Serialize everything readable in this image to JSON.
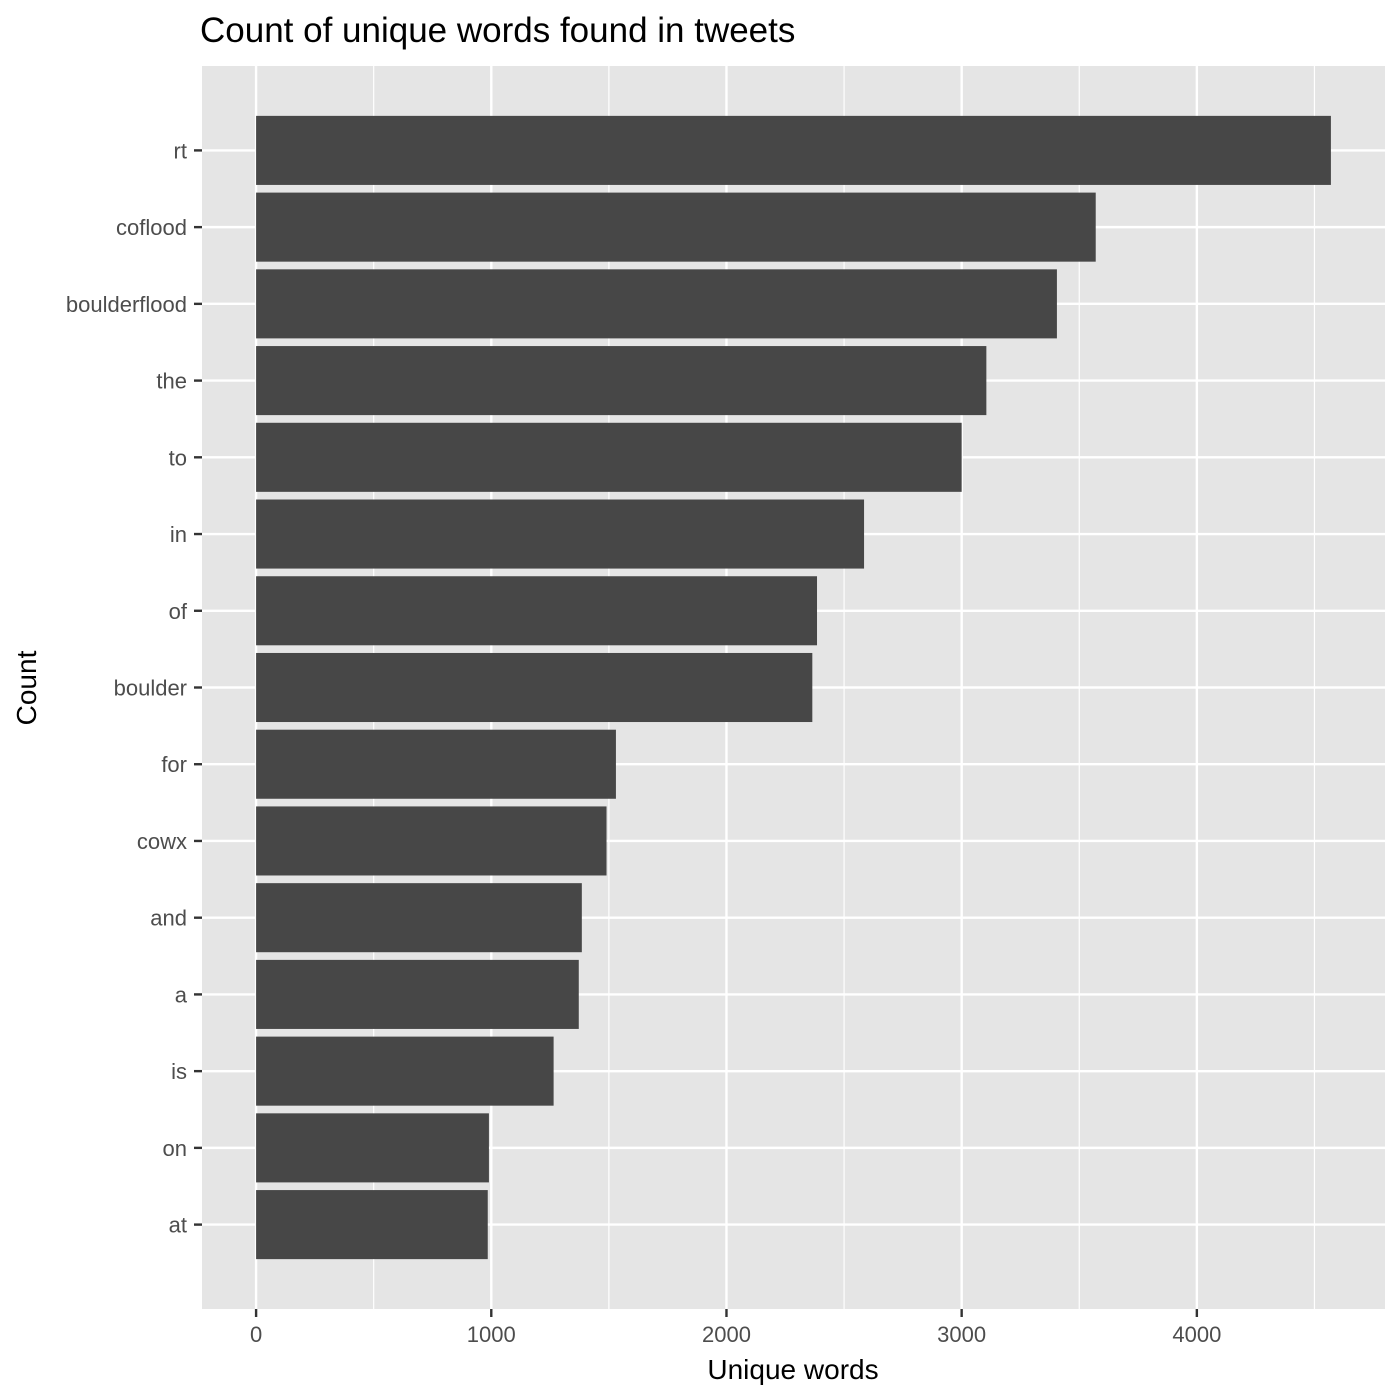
{
  "chart_data": {
    "type": "bar",
    "orientation": "horizontal",
    "title": "Count of unique words found in tweets",
    "xlabel": "Unique words",
    "ylabel": "Count",
    "categories": [
      "rt",
      "coflood",
      "boulderflood",
      "the",
      "to",
      "in",
      "of",
      "boulder",
      "for",
      "cowx",
      "and",
      "a",
      "is",
      "on",
      "at"
    ],
    "values": [
      4570,
      3570,
      3405,
      3105,
      3000,
      2585,
      2385,
      2365,
      1530,
      1490,
      1385,
      1372,
      1265,
      990,
      985
    ],
    "xlim": [
      -230,
      4800
    ],
    "x_ticks": [
      0,
      1000,
      2000,
      3000,
      4000
    ],
    "x_minor": [
      500,
      1500,
      2500,
      3500,
      4500
    ],
    "grid": true,
    "colors": {
      "panel": "#e5e5e5",
      "grid": "#ffffff",
      "bar": "#474747",
      "tick": "#333333"
    }
  }
}
